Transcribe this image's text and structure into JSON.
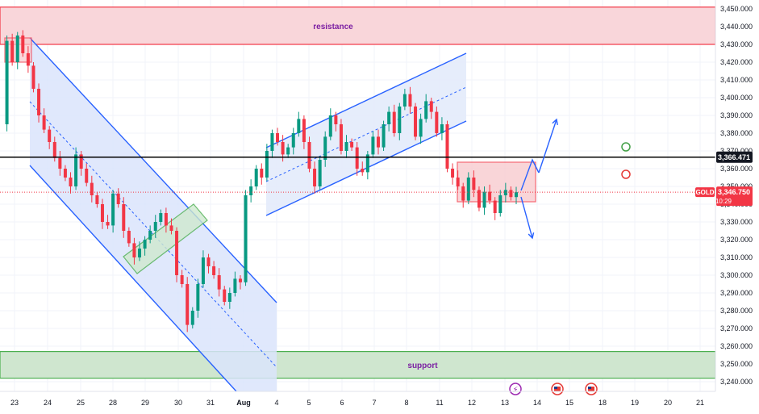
{
  "chart_data": {
    "type": "candlestick",
    "symbol_tag": "GOLD",
    "last_price": "3,346.750",
    "countdown": "10:29",
    "level_price": "3,366.471",
    "y_axis": {
      "min": 3236,
      "max": 3456,
      "ticks": [
        "3,450.000",
        "3,440.000",
        "3,430.000",
        "3,420.000",
        "3,410.000",
        "3,400.000",
        "3,390.000",
        "3,380.000",
        "3,370.000",
        "3,360.000",
        "3,350.000",
        "3,340.000",
        "3,330.000",
        "3,320.000",
        "3,310.000",
        "3,300.000",
        "3,290.000",
        "3,280.000",
        "3,270.000",
        "3,260.000",
        "3,250.000",
        "3,240.000"
      ]
    },
    "x_axis": {
      "labels": [
        "23",
        "24",
        "25",
        "28",
        "29",
        "30",
        "31",
        "Aug",
        "4",
        "5",
        "6",
        "7",
        "8",
        "11",
        "12",
        "13",
        "14",
        "15",
        "18",
        "19",
        "20",
        "21"
      ]
    },
    "zones": {
      "resistance": {
        "label": "resistance",
        "from": 3430,
        "to": 3451
      },
      "support": {
        "label": "support",
        "from": 3242,
        "to": 3257
      }
    },
    "horizontal_level": 3366.47,
    "price_path": [
      3385,
      3432,
      3420,
      3435,
      3425,
      3418,
      3405,
      3390,
      3382,
      3375,
      3366,
      3360,
      3355,
      3350,
      3368,
      3360,
      3352,
      3345,
      3340,
      3330,
      3328,
      3346,
      3340,
      3325,
      3318,
      3310,
      3315,
      3320,
      3325,
      3330,
      3335,
      3328,
      3325,
      3300,
      3295,
      3272,
      3280,
      3295,
      3310,
      3305,
      3300,
      3292,
      3285,
      3290,
      3298,
      3296,
      3345,
      3350,
      3360,
      3355,
      3370,
      3380,
      3375,
      3368,
      3372,
      3380,
      3388,
      3375,
      3360,
      3350,
      3365,
      3378,
      3390,
      3385,
      3370,
      3375,
      3372,
      3360,
      3358,
      3368,
      3378,
      3372,
      3385,
      3392,
      3380,
      3395,
      3402,
      3395,
      3378,
      3388,
      3398,
      3392,
      3380,
      3385,
      3360,
      3355,
      3350,
      3342,
      3355,
      3348,
      3338,
      3347,
      3342,
      3335,
      3345,
      3348,
      3344,
      3346.75
    ],
    "markers": {
      "green_circle": 3370,
      "red_circle": 3357
    },
    "colors": {
      "bull": "#089981",
      "bear": "#f23645",
      "channel": "#2962ff",
      "resistance_fill": "#f9d6da",
      "support_fill": "#cfe6cf",
      "level_line": "#000000"
    }
  }
}
